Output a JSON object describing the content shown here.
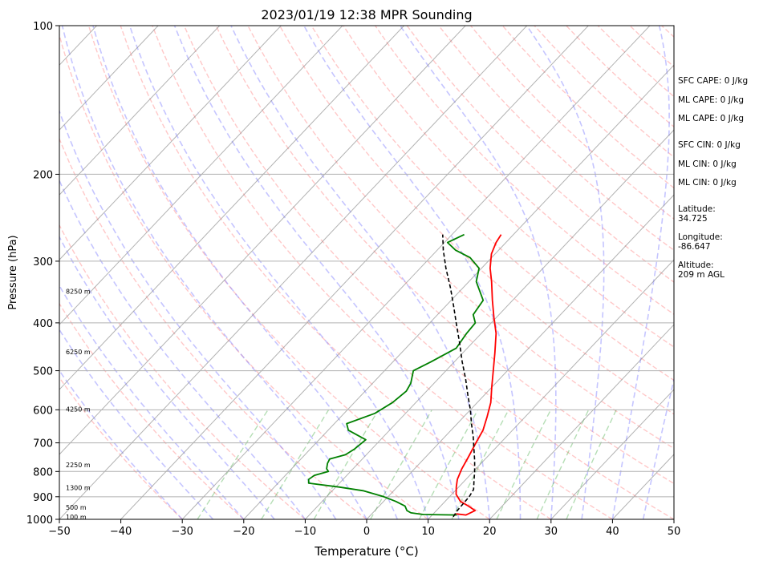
{
  "chart_data": {
    "type": "line",
    "title": "2023/01/19 12:38 MPR Sounding",
    "xlabel": "Temperature (°C)",
    "ylabel": "Pressure (hPa)",
    "xlim": [
      -50,
      50
    ],
    "ylim": [
      1000,
      100
    ],
    "yscale": "log",
    "skew": "skew-T log-p",
    "x_ticks": [
      -50,
      -40,
      -30,
      -20,
      -10,
      0,
      10,
      20,
      30,
      40,
      50
    ],
    "y_ticks": [
      1000,
      900,
      800,
      700,
      600,
      500,
      400,
      300,
      200,
      100
    ],
    "grid": "horizontal isobars",
    "height_labels": [
      {
        "label": "100 m",
        "pressure": 988
      },
      {
        "label": "500 m",
        "pressure": 945
      },
      {
        "label": "1300 m",
        "pressure": 862
      },
      {
        "label": "2250 m",
        "pressure": 775
      },
      {
        "label": "4250 m",
        "pressure": 598
      },
      {
        "label": "6250 m",
        "pressure": 458
      },
      {
        "label": "8250 m",
        "pressure": 345
      }
    ],
    "series": [
      {
        "role": "temperature",
        "color": "#ff0000",
        "points": [
          [
            975,
            13.7
          ],
          [
            980,
            15.5
          ],
          [
            960,
            16.3
          ],
          [
            940,
            14.5
          ],
          [
            920,
            12.5
          ],
          [
            890,
            10.7
          ],
          [
            860,
            9.6
          ],
          [
            830,
            8.6
          ],
          [
            790,
            7.7
          ],
          [
            750,
            7.0
          ],
          [
            700,
            6.0
          ],
          [
            660,
            5.2
          ],
          [
            620,
            3.8
          ],
          [
            580,
            2.2
          ],
          [
            540,
            0.0
          ],
          [
            500,
            -2.3
          ],
          [
            460,
            -4.8
          ],
          [
            420,
            -7.6
          ],
          [
            390,
            -10.4
          ],
          [
            360,
            -13.3
          ],
          [
            330,
            -16.3
          ],
          [
            310,
            -18.6
          ],
          [
            290,
            -20.6
          ],
          [
            275,
            -21.6
          ],
          [
            265,
            -22.0
          ]
        ]
      },
      {
        "role": "dewpoint",
        "color": "#008000",
        "points": [
          [
            980,
            14.0
          ],
          [
            978,
            8.5
          ],
          [
            970,
            6.2
          ],
          [
            960,
            5.2
          ],
          [
            940,
            4.2
          ],
          [
            920,
            2.0
          ],
          [
            900,
            -0.7
          ],
          [
            875,
            -5.0
          ],
          [
            860,
            -9.5
          ],
          [
            845,
            -15.0
          ],
          [
            830,
            -15.6
          ],
          [
            815,
            -15.3
          ],
          [
            800,
            -13.6
          ],
          [
            790,
            -14.3
          ],
          [
            770,
            -15.0
          ],
          [
            755,
            -15.3
          ],
          [
            740,
            -13.4
          ],
          [
            720,
            -12.8
          ],
          [
            690,
            -12.4
          ],
          [
            660,
            -16.7
          ],
          [
            640,
            -18.0
          ],
          [
            610,
            -15.0
          ],
          [
            580,
            -13.8
          ],
          [
            550,
            -13.3
          ],
          [
            530,
            -13.8
          ],
          [
            500,
            -15.3
          ],
          [
            480,
            -13.8
          ],
          [
            450,
            -11.8
          ],
          [
            420,
            -12.4
          ],
          [
            400,
            -12.6
          ],
          [
            385,
            -14.2
          ],
          [
            360,
            -14.8
          ],
          [
            330,
            -18.8
          ],
          [
            310,
            -20.4
          ],
          [
            295,
            -23.5
          ],
          [
            285,
            -27.0
          ],
          [
            275,
            -29.5
          ],
          [
            265,
            -28.0
          ]
        ]
      },
      {
        "role": "parcel",
        "color": "#000000",
        "style": "dashed",
        "points": [
          [
            988,
            13.7
          ],
          [
            960,
            13.4
          ],
          [
            930,
            13.3
          ],
          [
            900,
            13.2
          ],
          [
            870,
            12.8
          ],
          [
            840,
            11.7
          ],
          [
            800,
            10.2
          ],
          [
            760,
            8.5
          ],
          [
            720,
            6.6
          ],
          [
            680,
            4.6
          ],
          [
            640,
            2.3
          ],
          [
            600,
            0.0
          ],
          [
            560,
            -2.7
          ],
          [
            520,
            -5.5
          ],
          [
            480,
            -8.7
          ],
          [
            440,
            -12.0
          ],
          [
            400,
            -15.7
          ],
          [
            370,
            -18.7
          ],
          [
            340,
            -22.0
          ],
          [
            310,
            -25.8
          ],
          [
            285,
            -29.0
          ],
          [
            265,
            -31.5
          ]
        ]
      }
    ]
  },
  "side_panel": {
    "sfc_cape": "SFC CAPE: 0 J/kg",
    "ml_cape_1": "ML CAPE: 0 J/kg",
    "ml_cape_2": "ML CAPE: 0 J/kg",
    "sfc_cin": "SFC CIN: 0 J/kg",
    "ml_cin_1": "ML CIN: 0 J/kg",
    "ml_cin_2": "ML CIN: 0 J/kg",
    "latitude_label": "Latitude:",
    "latitude_value": "34.725",
    "longitude_label": "Longitude:",
    "longitude_value": "-86.647",
    "altitude_label": "Altitude:",
    "altitude_value": "209 m AGL"
  }
}
